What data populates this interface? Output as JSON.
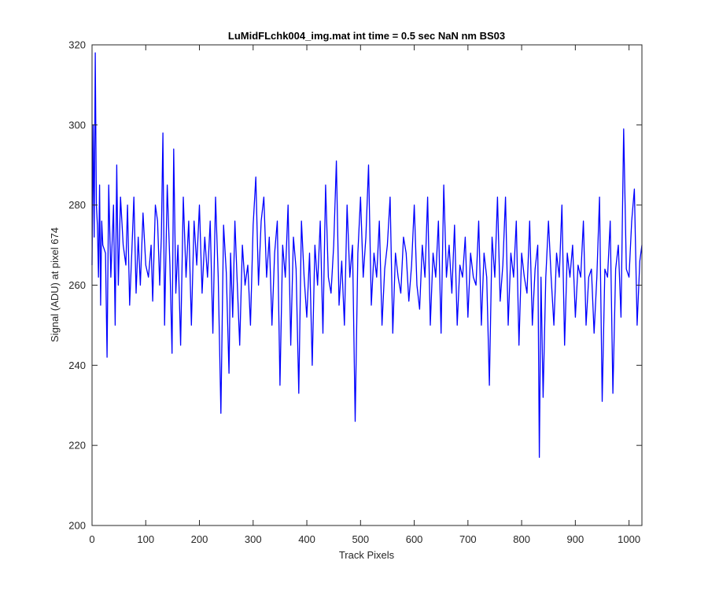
{
  "chart_data": {
    "type": "line",
    "title": "LuMidFLchk004_img.mat int time = 0.5 sec  NaN nm BS03",
    "xlabel": "Track Pixels",
    "ylabel": "Signal (ADU) at pixel 674",
    "xlim": [
      0,
      1024
    ],
    "ylim": [
      200,
      320
    ],
    "xticks": [
      0,
      100,
      200,
      300,
      400,
      500,
      600,
      700,
      800,
      900,
      1000
    ],
    "yticks": [
      200,
      220,
      240,
      260,
      280,
      300,
      320
    ],
    "grid": false,
    "series_color": "#0000ff",
    "series": [
      {
        "x": [
          0,
          2,
          4,
          6,
          8,
          10,
          12,
          14,
          16,
          18,
          20,
          25,
          28,
          31,
          35,
          40,
          43,
          46,
          49,
          53,
          58,
          63,
          66,
          70,
          74,
          78,
          82,
          86,
          90,
          95,
          100,
          105,
          110,
          113,
          118,
          122,
          126,
          129,
          132,
          135,
          140,
          145,
          149,
          152,
          156,
          160,
          165,
          170,
          175,
          180,
          185,
          190,
          195,
          200,
          205,
          210,
          215,
          220,
          225,
          230,
          235,
          240,
          245,
          250,
          255,
          258,
          262,
          266,
          270,
          275,
          280,
          285,
          290,
          295,
          300,
          305,
          310,
          315,
          320,
          325,
          330,
          335,
          340,
          345,
          350,
          355,
          360,
          365,
          370,
          375,
          380,
          385,
          390,
          395,
          400,
          405,
          410,
          415,
          420,
          425,
          430,
          435,
          440,
          445,
          450,
          455,
          460,
          465,
          470,
          475,
          480,
          485,
          490,
          495,
          500,
          505,
          510,
          515,
          520,
          525,
          530,
          535,
          540,
          545,
          550,
          555,
          560,
          565,
          570,
          575,
          580,
          585,
          590,
          595,
          600,
          605,
          610,
          615,
          620,
          625,
          630,
          635,
          640,
          645,
          650,
          655,
          660,
          665,
          670,
          675,
          680,
          685,
          690,
          695,
          700,
          705,
          710,
          715,
          720,
          725,
          730,
          735,
          740,
          745,
          750,
          755,
          760,
          765,
          770,
          775,
          780,
          785,
          790,
          795,
          800,
          805,
          810,
          815,
          820,
          825,
          830,
          833,
          836,
          840,
          845,
          850,
          855,
          860,
          865,
          870,
          875,
          880,
          885,
          890,
          895,
          900,
          905,
          910,
          915,
          920,
          925,
          930,
          935,
          940,
          945,
          950,
          955,
          960,
          965,
          970,
          975,
          980,
          985,
          990,
          995,
          1000,
          1005,
          1010,
          1015,
          1020,
          1024
        ],
        "values": [
          265,
          300,
          272,
          318,
          280,
          275,
          262,
          285,
          255,
          276,
          270,
          268,
          242,
          285,
          262,
          280,
          250,
          290,
          260,
          282,
          270,
          265,
          280,
          255,
          268,
          282,
          258,
          272,
          260,
          278,
          265,
          262,
          270,
          256,
          280,
          276,
          260,
          272,
          298,
          250,
          285,
          265,
          243,
          294,
          258,
          270,
          245,
          282,
          262,
          276,
          250,
          276,
          265,
          280,
          258,
          272,
          262,
          276,
          248,
          282,
          262,
          228,
          275,
          263,
          238,
          268,
          252,
          276,
          262,
          245,
          270,
          260,
          265,
          250,
          275,
          287,
          260,
          276,
          282,
          262,
          272,
          250,
          268,
          276,
          235,
          270,
          262,
          280,
          245,
          272,
          264,
          233,
          276,
          262,
          252,
          268,
          240,
          270,
          260,
          276,
          248,
          285,
          262,
          258,
          270,
          291,
          255,
          266,
          250,
          280,
          262,
          270,
          226,
          268,
          282,
          262,
          272,
          290,
          255,
          268,
          262,
          276,
          250,
          264,
          270,
          282,
          248,
          268,
          262,
          258,
          272,
          268,
          256,
          265,
          280,
          260,
          254,
          270,
          262,
          282,
          250,
          268,
          262,
          276,
          248,
          285,
          262,
          270,
          258,
          275,
          250,
          265,
          262,
          272,
          252,
          268,
          262,
          260,
          276,
          250,
          268,
          262,
          235,
          272,
          262,
          282,
          256,
          265,
          282,
          250,
          268,
          262,
          276,
          245,
          268,
          262,
          258,
          276,
          250,
          264,
          270,
          217,
          262,
          232,
          262,
          276,
          262,
          250,
          268,
          262,
          280,
          245,
          268,
          262,
          270,
          252,
          265,
          262,
          276,
          250,
          262,
          264,
          248,
          262,
          282,
          231,
          264,
          262,
          276,
          233,
          264,
          270,
          252,
          299,
          264,
          262,
          276,
          284,
          250,
          266,
          270
        ]
      }
    ]
  }
}
